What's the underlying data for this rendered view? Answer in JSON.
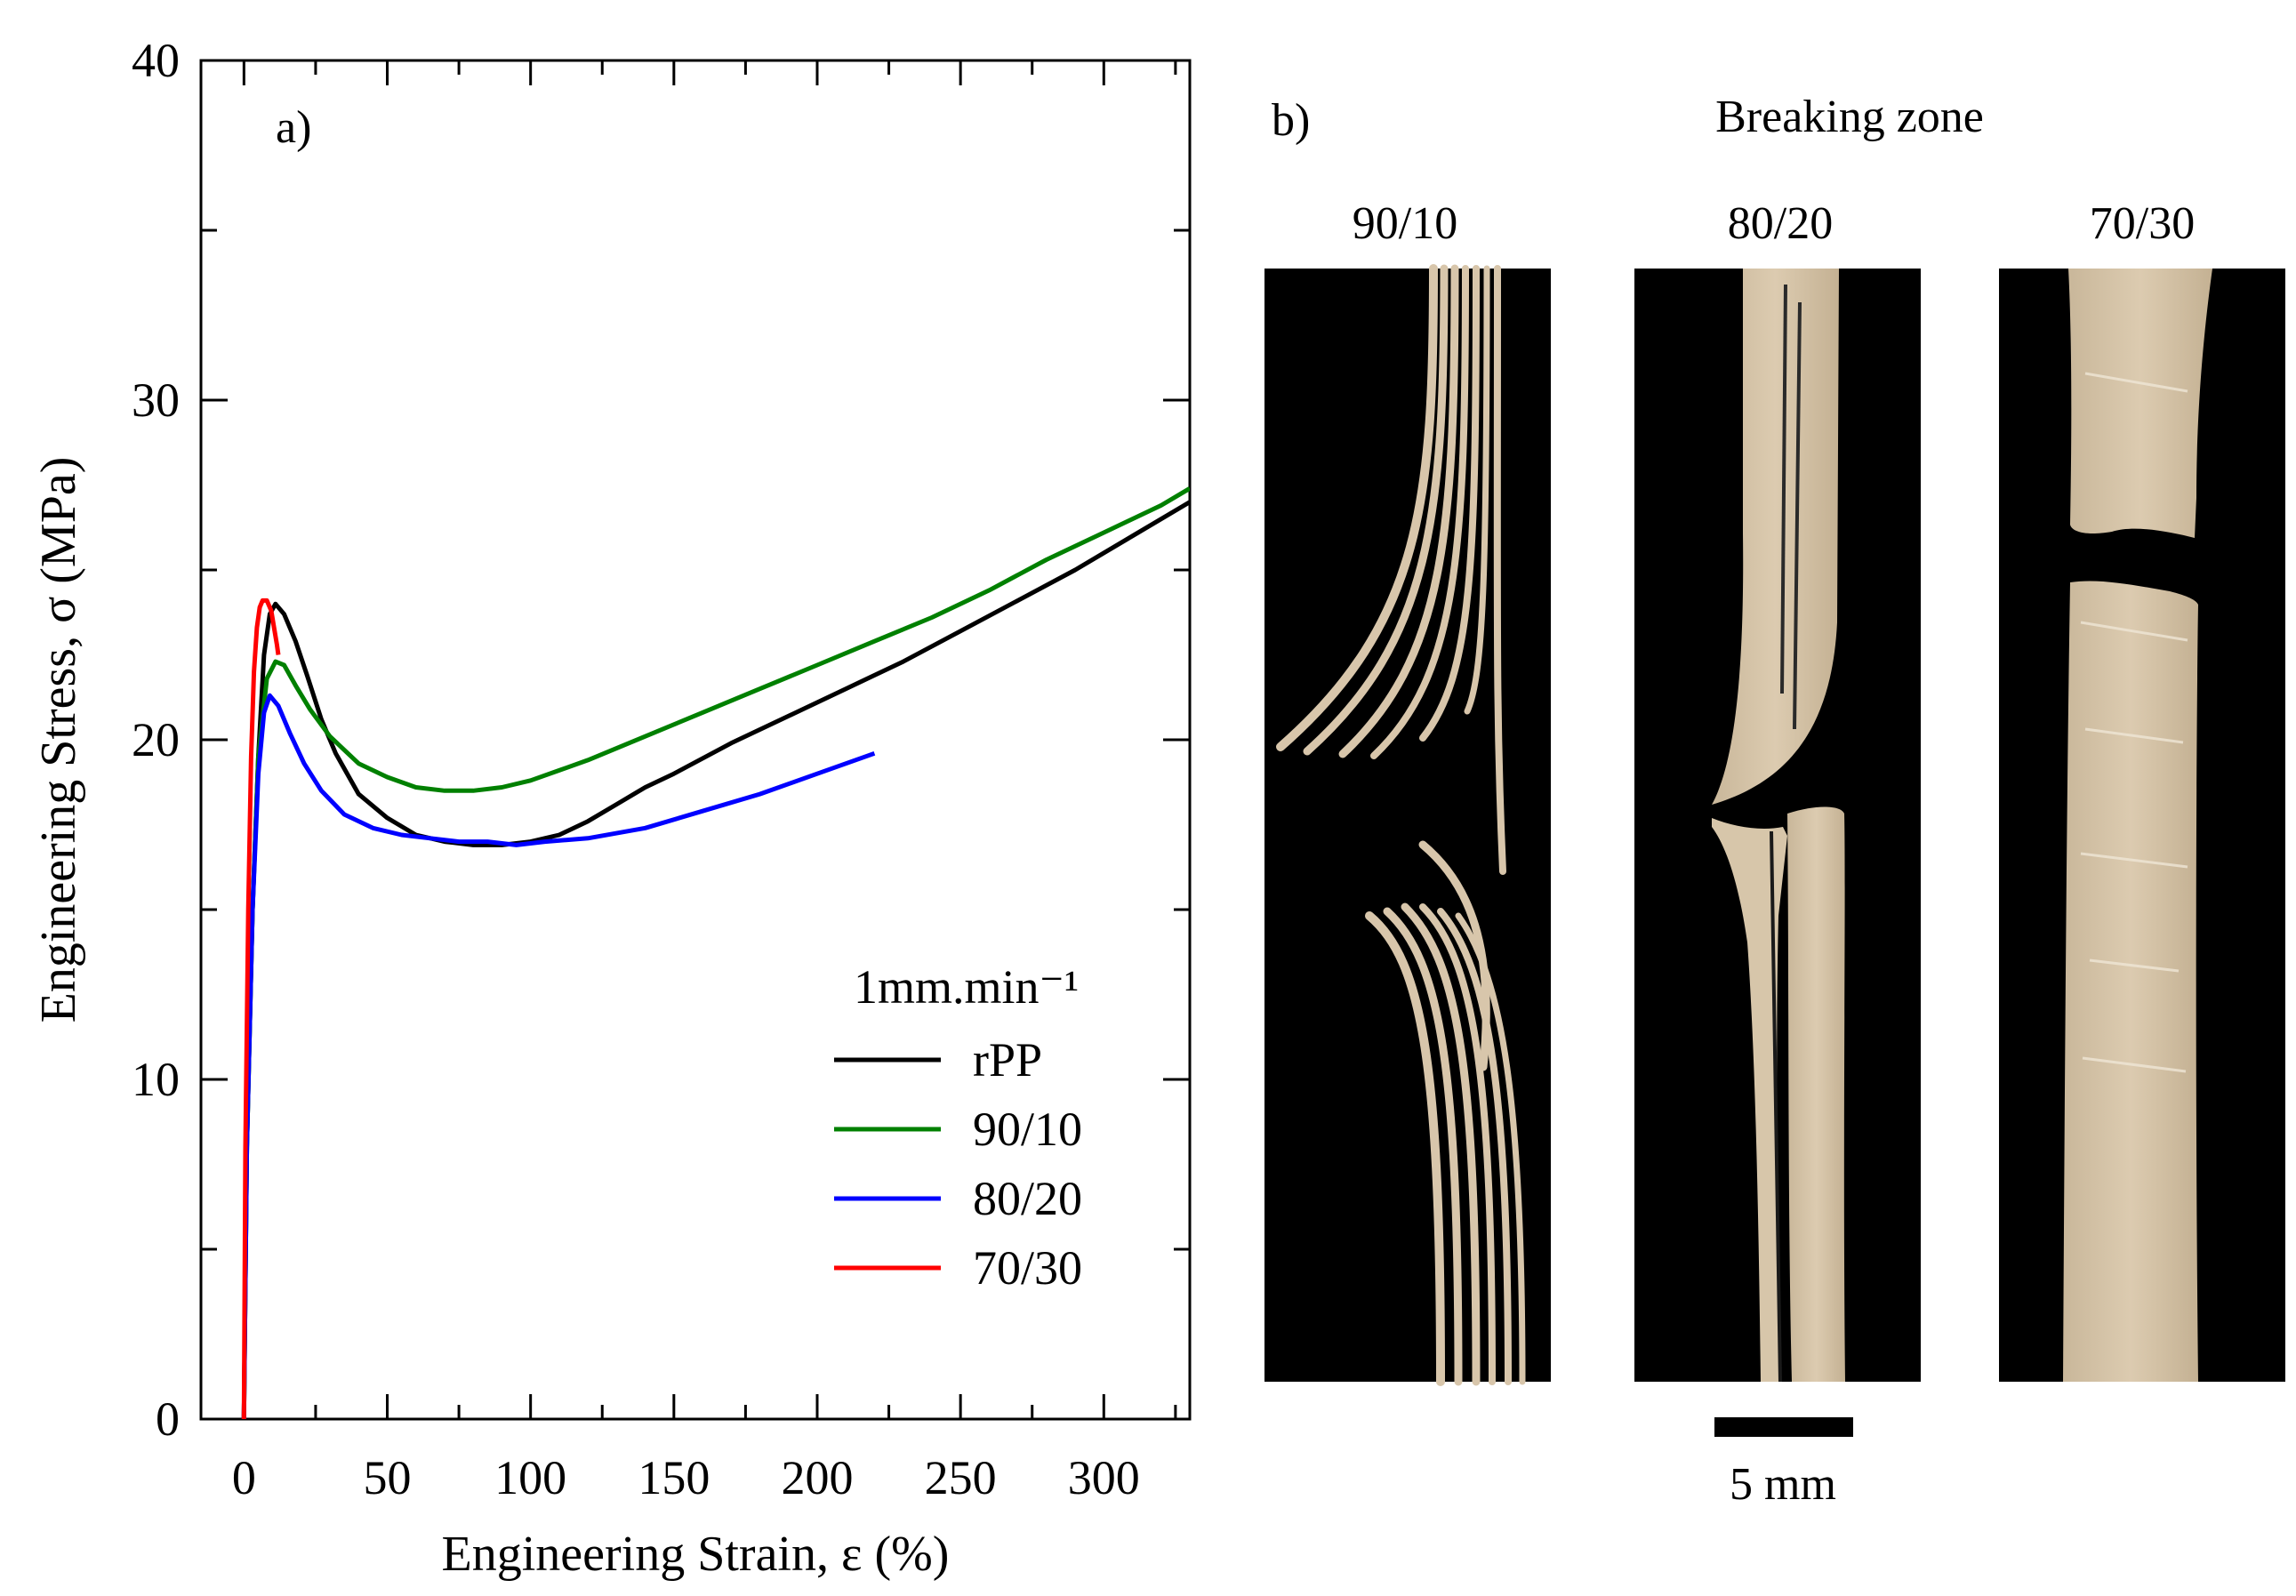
{
  "chart_data": {
    "type": "line",
    "panel_label": "a)",
    "xlabel": "Engineering Strain, ε (%)",
    "ylabel": "Engineering Stress, σ (MPa)",
    "xlim": [
      -15,
      330
    ],
    "ylim": [
      0,
      40
    ],
    "xticks": [
      0,
      50,
      100,
      150,
      200,
      250,
      300
    ],
    "yticks": [
      0,
      10,
      20,
      30,
      40
    ],
    "legend_title": "1mm.min⁻¹",
    "legend_position": "lower-right",
    "series": [
      {
        "name": "rPP",
        "color": "#000000",
        "x": [
          0,
          1,
          3,
          5,
          7,
          9,
          11,
          14,
          18,
          22,
          27,
          32,
          40,
          50,
          60,
          70,
          80,
          90,
          100,
          110,
          120,
          130,
          140,
          150,
          170,
          190,
          210,
          230,
          250,
          270,
          290,
          310,
          330
        ],
        "y": [
          0,
          8,
          15,
          19.5,
          22.5,
          23.7,
          24.0,
          23.7,
          22.9,
          21.9,
          20.6,
          19.6,
          18.4,
          17.7,
          17.2,
          17.0,
          16.9,
          16.9,
          17.0,
          17.2,
          17.6,
          18.1,
          18.6,
          19.0,
          19.9,
          20.7,
          21.5,
          22.3,
          23.2,
          24.1,
          25.0,
          26.0,
          27.0
        ]
      },
      {
        "name": "90/10",
        "color": "#008000",
        "x": [
          0,
          1,
          3,
          5,
          8,
          11,
          14,
          18,
          23,
          30,
          40,
          50,
          60,
          70,
          80,
          90,
          100,
          110,
          120,
          140,
          160,
          180,
          200,
          220,
          240,
          260,
          280,
          300,
          320,
          330
        ],
        "y": [
          0,
          8,
          15,
          19.5,
          21.8,
          22.3,
          22.2,
          21.6,
          20.9,
          20.1,
          19.3,
          18.9,
          18.6,
          18.5,
          18.5,
          18.6,
          18.8,
          19.1,
          19.4,
          20.1,
          20.8,
          21.5,
          22.2,
          22.9,
          23.6,
          24.4,
          25.3,
          26.1,
          26.9,
          27.4
        ]
      },
      {
        "name": "80/20",
        "color": "#0000ff",
        "x": [
          0,
          1,
          3,
          5,
          7,
          9,
          12,
          16,
          21,
          27,
          35,
          45,
          55,
          65,
          75,
          85,
          95,
          105,
          120,
          140,
          160,
          180,
          200,
          220
        ],
        "y": [
          0,
          8,
          15,
          19,
          20.8,
          21.3,
          21.0,
          20.2,
          19.3,
          18.5,
          17.8,
          17.4,
          17.2,
          17.1,
          17.0,
          17.0,
          16.9,
          17.0,
          17.1,
          17.4,
          17.9,
          18.4,
          19.0,
          19.6
        ]
      },
      {
        "name": "70/30",
        "color": "#ff0000",
        "x": [
          0,
          0.5,
          1.5,
          2.5,
          3.5,
          4.5,
          5.5,
          6.5,
          8,
          9.5,
          10.5,
          11.5,
          12
        ],
        "y": [
          0,
          8,
          15,
          19.5,
          22,
          23.3,
          23.9,
          24.1,
          24.1,
          23.8,
          23.3,
          22.8,
          22.5
        ]
      }
    ]
  },
  "photos": {
    "panel_label": "b)",
    "title": "Breaking zone",
    "samples": [
      {
        "label": "90/10"
      },
      {
        "label": "80/20"
      },
      {
        "label": "70/30"
      }
    ],
    "scale_label": "5 mm"
  }
}
